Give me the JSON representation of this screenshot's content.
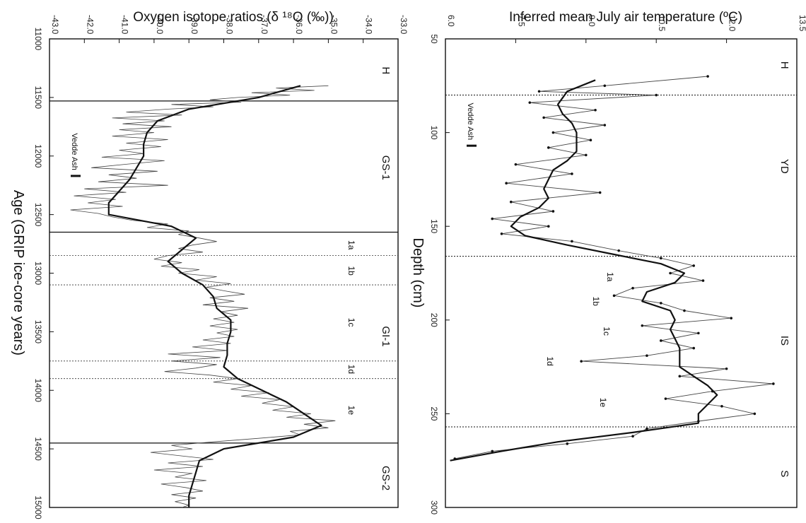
{
  "figure": {
    "left_title": "Oxygen isotope ratios (δ ¹⁸O (‰))",
    "right_title": "Inferred mean July air temperature (ºC)"
  },
  "chart_data": [
    {
      "type": "line",
      "title": "Oxygen isotope ratios (δ ¹⁸O (‰))",
      "xlabel": "Age (GRIP ice-core years)",
      "ylabel": "Oxygen isotope ratios (δ ¹⁸O (‰))",
      "xlim": [
        11000,
        15000
      ],
      "ylim": [
        -43.0,
        -33.0
      ],
      "x_ticks": [
        "11000",
        "11500",
        "12000",
        "12500",
        "13000",
        "13500",
        "14000",
        "14500",
        "15000"
      ],
      "y_ticks": [
        "-43.0",
        "-42.0",
        "-41.0",
        "-40.0",
        "-39.0",
        "-38.0",
        "-37.0",
        "-36.0",
        "-35.0",
        "-34.0",
        "-33.0"
      ],
      "zone_boundaries": [
        11530,
        12650,
        14450
      ],
      "subzone_boundaries": [
        12850,
        13100,
        13750,
        13900
      ],
      "zones": [
        {
          "label": "H",
          "x": 11270
        },
        {
          "label": "GS-1",
          "x": 12100
        },
        {
          "label": "GI-1",
          "x": 13540
        },
        {
          "label": "GS-2",
          "x": 14750
        }
      ],
      "subzones": [
        {
          "label": "1a",
          "x": 12760
        },
        {
          "label": "1b",
          "x": 12980
        },
        {
          "label": "1c",
          "x": 13420
        },
        {
          "label": "1d",
          "x": 13820
        },
        {
          "label": "1e",
          "x": 14170
        }
      ],
      "annotation": {
        "label": "Vedde Ash",
        "x": 12170
      },
      "series": [
        {
          "role": "smoothed",
          "x": [
            11400,
            11500,
            11600,
            11700,
            11800,
            11900,
            12000,
            12100,
            12200,
            12300,
            12400,
            12500,
            12600,
            12700,
            12800,
            12900,
            13000,
            13100,
            13200,
            13300,
            13400,
            13500,
            13600,
            13700,
            13800,
            13900,
            14000,
            14100,
            14200,
            14300,
            14400,
            14500,
            14600,
            14700,
            14800,
            14900,
            15000
          ],
          "y": [
            -35.8,
            -37.0,
            -39.0,
            -39.9,
            -40.2,
            -40.3,
            -40.3,
            -40.5,
            -40.7,
            -41.0,
            -41.3,
            -41.3,
            -39.5,
            -38.8,
            -39.2,
            -39.6,
            -39.2,
            -38.6,
            -38.3,
            -38.2,
            -37.8,
            -37.8,
            -37.9,
            -37.9,
            -38.0,
            -37.6,
            -36.9,
            -36.2,
            -35.7,
            -35.2,
            -36.0,
            -38.0,
            -38.7,
            -38.8,
            -38.9,
            -39.0,
            -39.0
          ]
        },
        {
          "role": "raw",
          "x": [
            11400,
            11420,
            11440,
            11460,
            11480,
            11500,
            11520,
            11540,
            11560,
            11580,
            11600,
            11625,
            11650,
            11675,
            11700,
            11725,
            11750,
            11775,
            11800,
            11830,
            11860,
            11890,
            11920,
            11950,
            11980,
            12010,
            12040,
            12070,
            12100,
            12130,
            12160,
            12190,
            12220,
            12250,
            12280,
            12310,
            12340,
            12370,
            12400,
            12430,
            12460,
            12490,
            12520,
            12550,
            12580,
            12610,
            12640,
            12670,
            12700,
            12730,
            12760,
            12790,
            12820,
            12850,
            12880,
            12910,
            12940,
            12970,
            13000,
            13030,
            13060,
            13090,
            13120,
            13150,
            13180,
            13210,
            13240,
            13270,
            13300,
            13330,
            13360,
            13390,
            13420,
            13450,
            13480,
            13510,
            13540,
            13570,
            13600,
            13630,
            13660,
            13690,
            13720,
            13750,
            13780,
            13810,
            13840,
            13870,
            13900,
            13930,
            13960,
            13990,
            14020,
            14050,
            14080,
            14110,
            14140,
            14170,
            14200,
            14230,
            14260,
            14290,
            14320,
            14350,
            14380,
            14410,
            14440,
            14470,
            14500,
            14530,
            14560,
            14590,
            14620,
            14650,
            14680,
            14710,
            14740,
            14770,
            14800,
            14830,
            14860,
            14890,
            14920,
            14950,
            14980,
            15000
          ],
          "y": [
            -35.0,
            -36.5,
            -35.4,
            -37.2,
            -36.1,
            -37.6,
            -38.4,
            -37.5,
            -39.5,
            -38.3,
            -39.6,
            -40.8,
            -39.2,
            -41.2,
            -39.7,
            -40.9,
            -39.5,
            -41.0,
            -40.0,
            -41.2,
            -39.6,
            -40.8,
            -39.8,
            -41.0,
            -40.3,
            -41.5,
            -39.7,
            -40.8,
            -41.8,
            -39.9,
            -41.3,
            -40.5,
            -41.6,
            -39.6,
            -42.0,
            -40.8,
            -42.3,
            -41.1,
            -41.9,
            -40.9,
            -42.4,
            -41.6,
            -41.2,
            -40.6,
            -39.6,
            -40.2,
            -39.0,
            -39.3,
            -38.7,
            -38.2,
            -38.9,
            -39.3,
            -38.6,
            -39.6,
            -40.0,
            -39.2,
            -39.8,
            -38.7,
            -39.3,
            -38.2,
            -38.8,
            -37.8,
            -38.5,
            -38.0,
            -37.4,
            -38.4,
            -37.7,
            -38.6,
            -37.3,
            -38.1,
            -37.6,
            -38.3,
            -37.7,
            -38.4,
            -37.6,
            -38.2,
            -37.7,
            -38.6,
            -37.8,
            -38.9,
            -37.9,
            -39.6,
            -38.1,
            -39.5,
            -38.2,
            -38.8,
            -39.7,
            -38.4,
            -37.6,
            -38.3,
            -37.2,
            -37.8,
            -36.7,
            -37.5,
            -36.4,
            -36.9,
            -36.0,
            -36.6,
            -35.5,
            -36.2,
            -34.8,
            -35.7,
            -35.0,
            -36.1,
            -35.8,
            -37.0,
            -38.3,
            -39.5,
            -38.9,
            -40.1,
            -39.2,
            -38.3,
            -39.6,
            -38.6,
            -40.0,
            -38.9,
            -39.4,
            -38.5,
            -39.8,
            -39.1,
            -38.6,
            -39.5,
            -38.8,
            -39.4,
            -39.0,
            -39.2
          ]
        }
      ]
    },
    {
      "type": "line",
      "title": "Inferred mean July air temperature (ºC)",
      "xlabel": "Depth (cm)",
      "ylabel": "Inferred mean July air temperature (ºC)",
      "xlim": [
        50,
        300
      ],
      "ylim": [
        6.0,
        13.5
      ],
      "x_ticks": [
        "50",
        "100",
        "150",
        "200",
        "250",
        "300"
      ],
      "y_ticks": [
        "6.0",
        "7.5",
        "9.0",
        "10.5",
        "12.0",
        "13.5"
      ],
      "zone_boundaries": [
        80,
        166,
        257
      ],
      "zones": [
        {
          "label": "H",
          "x": 64
        },
        {
          "label": "YD",
          "x": 118
        },
        {
          "label": "IS",
          "x": 211
        },
        {
          "label": "S",
          "x": 282
        }
      ],
      "subzones": [
        {
          "label": "1a",
          "x": 177
        },
        {
          "label": "1b",
          "x": 190
        },
        {
          "label": "1c",
          "x": 206
        },
        {
          "label": "1d",
          "x": 222
        },
        {
          "label": "1e",
          "x": 244
        }
      ],
      "annotation": {
        "label": "Vedde Ash",
        "x": 107
      },
      "series": [
        {
          "role": "smoothed",
          "x": [
            72,
            78,
            85,
            90,
            95,
            100,
            105,
            110,
            115,
            120,
            125,
            130,
            135,
            140,
            145,
            150,
            155,
            160,
            165,
            170,
            175,
            180,
            185,
            190,
            195,
            200,
            205,
            210,
            215,
            220,
            225,
            230,
            235,
            240,
            245,
            250,
            255,
            260,
            265,
            270,
            275
          ],
          "y": [
            9.2,
            8.6,
            8.4,
            8.5,
            8.7,
            8.8,
            8.8,
            8.8,
            8.6,
            8.3,
            8.2,
            8.1,
            8.2,
            8.0,
            7.6,
            7.4,
            7.7,
            8.6,
            9.6,
            10.6,
            11.1,
            10.9,
            10.3,
            10.2,
            10.8,
            10.9,
            10.8,
            10.9,
            11.0,
            11.0,
            11.0,
            11.3,
            11.6,
            11.8,
            11.6,
            11.4,
            11.4,
            10.0,
            8.4,
            7.2,
            6.1
          ]
        },
        {
          "role": "raw",
          "x": [
            70,
            75,
            78,
            80,
            84,
            88,
            92,
            96,
            100,
            104,
            108,
            112,
            117,
            122,
            127,
            132,
            137,
            142,
            146,
            150,
            154,
            158,
            163,
            167,
            171,
            175,
            179,
            183,
            187,
            191,
            195,
            199,
            203,
            207,
            211,
            215,
            219,
            222,
            226,
            230,
            234,
            238,
            242,
            246,
            250,
            254,
            258,
            262,
            266,
            270,
            274
          ],
          "y": [
            11.6,
            9.4,
            8.0,
            10.5,
            7.8,
            9.2,
            8.1,
            9.4,
            8.3,
            9.1,
            8.2,
            9.0,
            7.5,
            8.7,
            7.3,
            9.3,
            7.4,
            8.3,
            7.0,
            8.2,
            7.2,
            8.7,
            9.7,
            10.6,
            11.3,
            10.8,
            11.5,
            10.0,
            9.6,
            10.6,
            11.1,
            12.1,
            10.2,
            11.4,
            10.6,
            11.3,
            10.3,
            8.9,
            12.0,
            11.0,
            13.0,
            11.7,
            10.7,
            11.9,
            12.6,
            11.4,
            10.3,
            10.0,
            8.6,
            7.0,
            6.2
          ]
        }
      ]
    }
  ]
}
